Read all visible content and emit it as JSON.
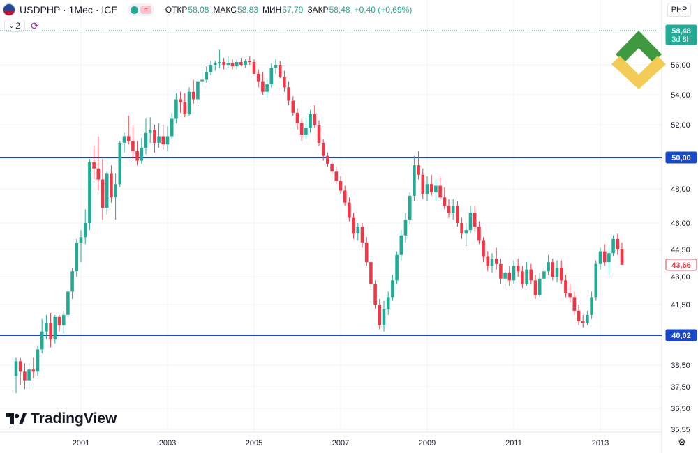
{
  "header": {
    "symbol": "USDPHP · 1Мес · ICE",
    "eq_icon": "≈",
    "ohlc": [
      {
        "label": "ОТКР",
        "value": "58,08"
      },
      {
        "label": "МАКС",
        "value": "58,83"
      },
      {
        "label": "МИН",
        "value": "57,79"
      },
      {
        "label": "ЗАКР",
        "value": "58,48"
      }
    ],
    "change": "+0,40 (+0,69%)",
    "indicator_count": "2",
    "currency": "PHP"
  },
  "price_tags": {
    "current": "58,48",
    "countdown": "3d 8h",
    "last_visible": "43,66",
    "upper_line": "50,00",
    "lower_line": "40,02"
  },
  "colors": {
    "up": "#22ab94",
    "down": "#f23645",
    "hline": "#1848cc",
    "tag_up": "#22ab94",
    "tag_line": "#1848cc",
    "grid": "#f0f3fa",
    "logo_green": "#3f9a3f",
    "logo_yellow": "#f2c94c"
  },
  "brand": "TradingView",
  "chart_data": {
    "type": "candlestick",
    "title": "USDPHP · 1Мес · ICE",
    "y_ticks": [
      "56,00",
      "54,00",
      "52,00",
      "50,00",
      "48,00",
      "46,00",
      "44,50",
      "43,00",
      "41,50",
      "40,02",
      "38,50",
      "37,50",
      "36,50",
      "35,55"
    ],
    "x_ticks": [
      "2001",
      "2003",
      "2005",
      "2007",
      "2009",
      "2011",
      "2013"
    ],
    "ylim": [
      35.55,
      58.48
    ],
    "horizontal_lines": [
      50.0,
      40.02
    ],
    "grid": true,
    "candles": [
      [
        1999.5,
        38.0,
        38.9,
        37.2,
        38.7
      ],
      [
        1999.6,
        38.7,
        38.9,
        37.6,
        38.2
      ],
      [
        1999.7,
        38.2,
        38.6,
        37.4,
        37.8
      ],
      [
        1999.8,
        37.8,
        38.6,
        37.4,
        38.3
      ],
      [
        1999.9,
        38.3,
        38.9,
        37.9,
        38.2
      ],
      [
        2000.0,
        38.2,
        39.5,
        38.0,
        39.3
      ],
      [
        2000.1,
        39.3,
        40.8,
        39.1,
        40.2
      ],
      [
        2000.2,
        40.2,
        41.0,
        39.8,
        40.6
      ],
      [
        2000.3,
        40.6,
        41.1,
        39.4,
        39.8
      ],
      [
        2000.4,
        39.8,
        41.0,
        39.6,
        40.9
      ],
      [
        2000.5,
        40.9,
        41.0,
        40.2,
        40.5
      ],
      [
        2000.6,
        40.5,
        41.2,
        40.1,
        41.0
      ],
      [
        2000.7,
        41.0,
        42.3,
        40.9,
        42.2
      ],
      [
        2000.8,
        42.2,
        43.5,
        41.8,
        43.3
      ],
      [
        2000.9,
        43.3,
        45.1,
        43.0,
        44.9
      ],
      [
        2001.0,
        44.9,
        45.6,
        43.8,
        45.2
      ],
      [
        2001.1,
        45.2,
        46.8,
        44.8,
        46.0
      ],
      [
        2001.2,
        46.0,
        49.9,
        45.6,
        49.7
      ],
      [
        2001.3,
        49.7,
        50.7,
        48.6,
        49.3
      ],
      [
        2001.4,
        49.3,
        51.3,
        47.9,
        48.6
      ],
      [
        2001.5,
        48.6,
        49.9,
        46.2,
        46.9
      ],
      [
        2001.6,
        46.9,
        49.1,
        46.5,
        49.0
      ],
      [
        2001.7,
        49.0,
        49.5,
        47.2,
        47.5
      ],
      [
        2001.8,
        47.5,
        49.0,
        46.2,
        48.3
      ],
      [
        2001.9,
        48.3,
        51.0,
        48.1,
        50.9
      ],
      [
        2002.0,
        50.9,
        51.5,
        50.3,
        51.3
      ],
      [
        2002.1,
        51.3,
        52.6,
        50.8,
        51.0
      ],
      [
        2002.2,
        51.0,
        52.0,
        49.9,
        50.4
      ],
      [
        2002.3,
        50.4,
        51.0,
        49.5,
        49.8
      ],
      [
        2002.4,
        49.8,
        51.2,
        49.6,
        50.6
      ],
      [
        2002.5,
        50.6,
        52.4,
        50.2,
        51.5
      ],
      [
        2002.6,
        51.5,
        52.5,
        50.9,
        51.7
      ],
      [
        2002.7,
        51.7,
        52.0,
        50.3,
        50.9
      ],
      [
        2002.8,
        50.9,
        52.1,
        50.6,
        51.3
      ],
      [
        2002.9,
        51.3,
        52.0,
        50.5,
        50.8
      ],
      [
        2003.0,
        50.8,
        51.9,
        50.4,
        51.3
      ],
      [
        2003.1,
        51.3,
        52.8,
        51.1,
        52.4
      ],
      [
        2003.2,
        52.4,
        54.1,
        52.1,
        53.7
      ],
      [
        2003.3,
        53.7,
        54.2,
        52.8,
        53.5
      ],
      [
        2003.4,
        53.5,
        54.1,
        52.5,
        52.7
      ],
      [
        2003.5,
        52.7,
        54.5,
        52.6,
        54.2
      ],
      [
        2003.6,
        54.2,
        55.0,
        53.4,
        53.7
      ],
      [
        2003.7,
        53.7,
        55.1,
        53.4,
        54.9
      ],
      [
        2003.8,
        54.9,
        55.7,
        54.5,
        55.0
      ],
      [
        2003.9,
        55.0,
        55.9,
        54.8,
        55.5
      ],
      [
        2004.0,
        55.5,
        56.3,
        55.3,
        56.0
      ],
      [
        2004.1,
        56.0,
        56.3,
        55.6,
        56.1
      ],
      [
        2004.2,
        56.1,
        57.1,
        55.8,
        56.2
      ],
      [
        2004.3,
        56.2,
        56.5,
        55.7,
        56.0
      ],
      [
        2004.4,
        56.0,
        56.6,
        55.8,
        56.1
      ],
      [
        2004.5,
        56.1,
        56.4,
        55.7,
        55.9
      ],
      [
        2004.6,
        55.9,
        56.4,
        55.7,
        56.2
      ],
      [
        2004.7,
        56.2,
        56.5,
        55.9,
        56.0
      ],
      [
        2004.8,
        56.0,
        56.4,
        55.8,
        56.3
      ],
      [
        2004.9,
        56.3,
        56.6,
        56.0,
        56.2
      ],
      [
        2005.0,
        56.2,
        56.4,
        55.6,
        55.4
      ],
      [
        2005.1,
        55.4,
        55.7,
        54.5,
        54.9
      ],
      [
        2005.2,
        54.9,
        55.5,
        54.0,
        54.2
      ],
      [
        2005.3,
        54.2,
        55.0,
        53.8,
        54.7
      ],
      [
        2005.4,
        54.7,
        56.1,
        54.5,
        55.8
      ],
      [
        2005.5,
        55.8,
        56.4,
        55.4,
        56.0
      ],
      [
        2005.6,
        56.0,
        56.3,
        55.1,
        55.2
      ],
      [
        2005.7,
        55.2,
        55.6,
        54.2,
        54.5
      ],
      [
        2005.8,
        54.5,
        54.9,
        53.3,
        53.6
      ],
      [
        2005.9,
        53.6,
        53.9,
        52.6,
        52.8
      ],
      [
        2006.0,
        52.8,
        53.1,
        51.7,
        52.1
      ],
      [
        2006.1,
        52.1,
        52.4,
        51.0,
        51.4
      ],
      [
        2006.2,
        51.4,
        52.5,
        51.1,
        51.8
      ],
      [
        2006.3,
        51.8,
        53.0,
        51.5,
        52.7
      ],
      [
        2006.4,
        52.7,
        53.3,
        51.8,
        52.0
      ],
      [
        2006.5,
        52.0,
        52.3,
        50.7,
        50.9
      ],
      [
        2006.6,
        50.9,
        51.1,
        49.8,
        50.1
      ],
      [
        2006.7,
        50.1,
        50.3,
        49.4,
        49.6
      ],
      [
        2006.8,
        49.6,
        49.9,
        48.9,
        49.1
      ],
      [
        2006.9,
        49.1,
        49.4,
        48.3,
        48.5
      ],
      [
        2007.0,
        48.5,
        48.8,
        47.7,
        47.9
      ],
      [
        2007.1,
        47.9,
        48.2,
        47.0,
        47.2
      ],
      [
        2007.2,
        47.2,
        47.5,
        46.1,
        46.3
      ],
      [
        2007.3,
        46.3,
        46.6,
        45.1,
        45.4
      ],
      [
        2007.4,
        45.4,
        46.0,
        45.0,
        45.8
      ],
      [
        2007.5,
        45.8,
        46.0,
        44.6,
        44.9
      ],
      [
        2007.6,
        44.9,
        45.2,
        43.6,
        43.8
      ],
      [
        2007.7,
        43.8,
        44.0,
        42.4,
        42.6
      ],
      [
        2007.8,
        42.6,
        42.8,
        41.3,
        41.5
      ],
      [
        2007.9,
        41.5,
        41.8,
        40.3,
        40.5
      ],
      [
        2008.0,
        40.5,
        41.7,
        40.2,
        41.3
      ],
      [
        2008.1,
        41.3,
        42.2,
        41.0,
        41.9
      ],
      [
        2008.2,
        41.9,
        43.1,
        41.7,
        42.8
      ],
      [
        2008.3,
        42.8,
        44.4,
        42.6,
        44.2
      ],
      [
        2008.4,
        44.2,
        45.6,
        43.9,
        45.3
      ],
      [
        2008.5,
        45.3,
        46.6,
        44.9,
        46.2
      ],
      [
        2008.6,
        46.2,
        47.8,
        45.9,
        47.6
      ],
      [
        2008.7,
        47.6,
        50.1,
        47.3,
        49.5
      ],
      [
        2008.8,
        49.5,
        50.4,
        48.6,
        48.9
      ],
      [
        2008.9,
        48.9,
        49.3,
        47.4,
        47.7
      ],
      [
        2009.0,
        47.7,
        48.8,
        47.3,
        48.3
      ],
      [
        2009.1,
        48.3,
        48.9,
        47.6,
        47.8
      ],
      [
        2009.2,
        47.8,
        48.6,
        47.3,
        48.2
      ],
      [
        2009.3,
        48.2,
        48.8,
        47.4,
        47.5
      ],
      [
        2009.4,
        47.5,
        48.1,
        46.8,
        47.0
      ],
      [
        2009.5,
        47.0,
        47.4,
        46.3,
        46.6
      ],
      [
        2009.6,
        46.6,
        47.4,
        46.2,
        47.0
      ],
      [
        2009.7,
        47.0,
        47.3,
        45.8,
        46.0
      ],
      [
        2009.8,
        46.0,
        46.3,
        45.1,
        45.4
      ],
      [
        2009.9,
        45.4,
        46.0,
        44.7,
        45.6
      ],
      [
        2010.0,
        45.6,
        47.0,
        45.4,
        46.6
      ],
      [
        2010.1,
        46.6,
        47.0,
        45.5,
        45.8
      ],
      [
        2010.2,
        45.8,
        46.1,
        44.8,
        45.0
      ],
      [
        2010.3,
        45.0,
        45.2,
        43.8,
        44.1
      ],
      [
        2010.4,
        44.1,
        44.4,
        43.3,
        43.6
      ],
      [
        2010.5,
        43.6,
        44.3,
        43.2,
        44.0
      ],
      [
        2010.6,
        44.0,
        44.6,
        43.4,
        43.7
      ],
      [
        2010.7,
        43.7,
        44.0,
        42.6,
        42.9
      ],
      [
        2010.8,
        42.9,
        43.4,
        42.5,
        43.2
      ],
      [
        2010.9,
        43.2,
        43.6,
        42.5,
        42.8
      ],
      [
        2011.0,
        42.8,
        43.9,
        42.6,
        43.6
      ],
      [
        2011.1,
        43.6,
        44.0,
        43.0,
        43.3
      ],
      [
        2011.2,
        43.3,
        43.6,
        42.4,
        42.6
      ],
      [
        2011.3,
        42.6,
        43.8,
        42.5,
        43.4
      ],
      [
        2011.4,
        43.4,
        43.7,
        42.6,
        42.8
      ],
      [
        2011.5,
        42.8,
        43.1,
        41.8,
        42.0
      ],
      [
        2011.6,
        42.0,
        43.2,
        41.9,
        42.9
      ],
      [
        2011.7,
        42.9,
        43.6,
        42.7,
        43.3
      ],
      [
        2011.8,
        43.3,
        44.2,
        43.1,
        43.8
      ],
      [
        2011.9,
        43.8,
        44.0,
        42.8,
        43.0
      ],
      [
        2012.0,
        43.0,
        43.9,
        42.7,
        43.5
      ],
      [
        2012.1,
        43.5,
        43.9,
        42.6,
        42.8
      ],
      [
        2012.2,
        42.8,
        43.1,
        41.9,
        42.1
      ],
      [
        2012.3,
        42.1,
        42.6,
        41.6,
        41.9
      ],
      [
        2012.4,
        41.9,
        42.2,
        41.0,
        41.2
      ],
      [
        2012.5,
        41.2,
        41.5,
        40.5,
        40.7
      ],
      [
        2012.6,
        40.7,
        41.0,
        40.4,
        40.6
      ],
      [
        2012.7,
        40.6,
        41.2,
        40.5,
        41.0
      ],
      [
        2012.8,
        41.0,
        42.2,
        40.8,
        41.9
      ],
      [
        2012.9,
        41.9,
        43.9,
        41.7,
        43.7
      ],
      [
        2013.0,
        43.7,
        44.6,
        43.4,
        44.4
      ],
      [
        2013.1,
        44.4,
        44.8,
        43.6,
        43.8
      ],
      [
        2013.2,
        43.8,
        44.6,
        43.1,
        44.3
      ],
      [
        2013.3,
        44.3,
        45.3,
        44.1,
        45.1
      ],
      [
        2013.4,
        45.1,
        45.4,
        44.2,
        44.5
      ],
      [
        2013.5,
        44.5,
        44.9,
        43.7,
        43.66
      ]
    ]
  }
}
